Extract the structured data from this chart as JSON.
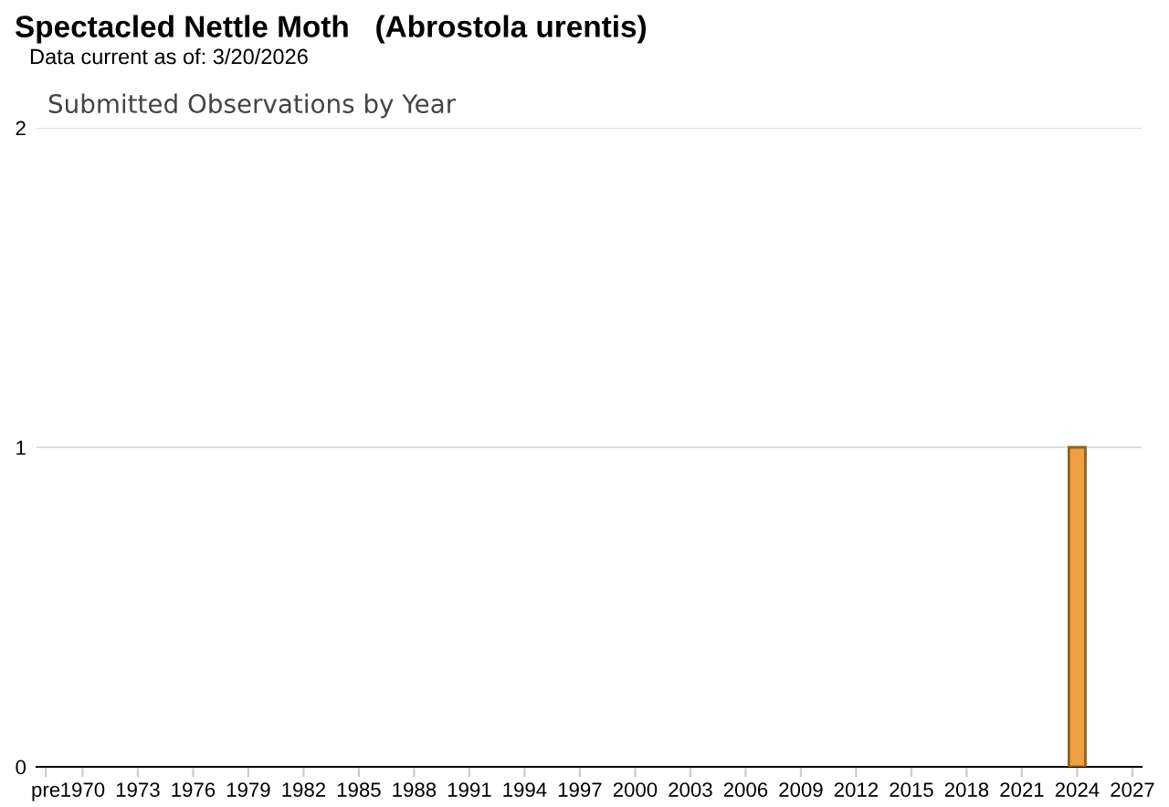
{
  "chart_data": {
    "type": "bar",
    "title": "Spectacled Nettle Moth   (Abrostola urentis)",
    "subtitle": "Data current as of: 3/20/2026",
    "annotations": [
      "Submitted Observations by Year"
    ],
    "categories": [
      "pre",
      null,
      "1970",
      null,
      null,
      "1973",
      null,
      null,
      "1976",
      null,
      null,
      "1979",
      null,
      null,
      "1982",
      null,
      null,
      "1985",
      null,
      null,
      "1988",
      null,
      null,
      "1991",
      null,
      null,
      "1994",
      null,
      null,
      "1997",
      null,
      null,
      "2000",
      null,
      null,
      "2003",
      null,
      null,
      "2006",
      null,
      null,
      "2009",
      null,
      null,
      "2012",
      null,
      null,
      "2015",
      null,
      null,
      "2018",
      null,
      null,
      "2021",
      null,
      null,
      "2024",
      null,
      null,
      "2027"
    ],
    "values": [
      0,
      0,
      0,
      0,
      0,
      0,
      0,
      0,
      0,
      0,
      0,
      0,
      0,
      0,
      0,
      0,
      0,
      0,
      0,
      0,
      0,
      0,
      0,
      0,
      0,
      0,
      0,
      0,
      0,
      0,
      0,
      0,
      0,
      0,
      0,
      0,
      0,
      0,
      0,
      0,
      0,
      0,
      0,
      0,
      0,
      0,
      0,
      0,
      0,
      0,
      0,
      0,
      0,
      0,
      0,
      0,
      1,
      0,
      0,
      0
    ],
    "color": "#f0a040",
    "ylim": [
      0,
      2
    ],
    "yticks": [
      0,
      1,
      2
    ],
    "grid": "y"
  }
}
